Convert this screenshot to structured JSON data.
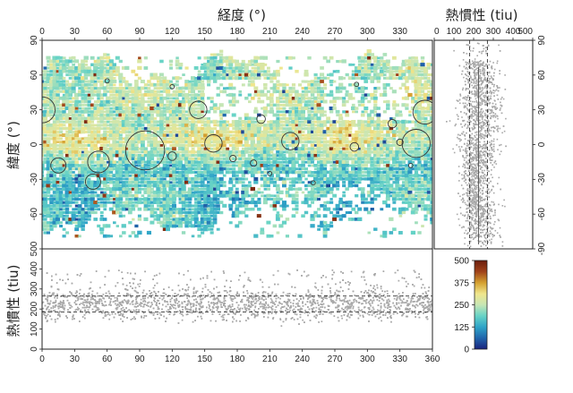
{
  "chart_data": [
    {
      "type": "heatmap",
      "title": "",
      "xlabel": "経度 (°)",
      "ylabel": "緯度 (°)",
      "xlim": [
        0,
        360
      ],
      "ylim": [
        -90,
        90
      ],
      "xticks": [
        0,
        30,
        60,
        90,
        120,
        150,
        180,
        210,
        240,
        270,
        300,
        330
      ],
      "yticks": [
        90,
        60,
        30,
        0,
        -30,
        -60
      ],
      "x_tick_labels": [
        "0",
        "30",
        "60",
        "90",
        "120",
        "150",
        "180",
        "210",
        "240",
        "270",
        "300",
        "330"
      ],
      "y_tick_labels": [
        "90",
        "60",
        "30",
        "0",
        "-30",
        "-60"
      ],
      "variable": "thermal inertia (tiu)",
      "color_range": [
        0,
        500
      ],
      "circles": [
        {
          "lon": 0,
          "lat": 30,
          "r_deg": 12
        },
        {
          "lon": 95,
          "lat": -5,
          "r_deg": 18
        },
        {
          "lon": 52,
          "lat": -15,
          "r_deg": 10
        },
        {
          "lon": 15,
          "lat": -18,
          "r_deg": 7
        },
        {
          "lon": 47,
          "lat": -32,
          "r_deg": 7
        },
        {
          "lon": 144,
          "lat": 30,
          "r_deg": 8
        },
        {
          "lon": 158,
          "lat": 1,
          "r_deg": 8
        },
        {
          "lon": 229,
          "lat": 3,
          "r_deg": 8
        },
        {
          "lon": 345,
          "lat": 1,
          "r_deg": 13
        },
        {
          "lon": 353,
          "lat": 28,
          "r_deg": 11
        },
        {
          "lon": 202,
          "lat": 22,
          "r_deg": 4
        },
        {
          "lon": 120,
          "lat": -10,
          "r_deg": 4
        },
        {
          "lon": 288,
          "lat": -2,
          "r_deg": 4
        },
        {
          "lon": 323,
          "lat": 18,
          "r_deg": 4
        },
        {
          "lon": 330,
          "lat": 2,
          "r_deg": 3
        },
        {
          "lon": 176,
          "lat": -12,
          "r_deg": 3
        },
        {
          "lon": 195,
          "lat": -16,
          "r_deg": 3
        },
        {
          "lon": 120,
          "lat": 50,
          "r_deg": 2
        },
        {
          "lon": 250,
          "lat": -33,
          "r_deg": 2
        },
        {
          "lon": 210,
          "lat": -25,
          "r_deg": 2
        },
        {
          "lon": 340,
          "lat": -18,
          "r_deg": 2
        },
        {
          "lon": 60,
          "lat": 55,
          "r_deg": 2
        },
        {
          "lon": 290,
          "lat": 52,
          "r_deg": 2
        }
      ]
    },
    {
      "type": "scatter",
      "title": "",
      "xlabel": "熱慣性 (tiu)",
      "ylabel": "",
      "xlim": [
        0,
        500
      ],
      "ylim": [
        -90,
        90
      ],
      "xticks": [
        0,
        100,
        200,
        300,
        400,
        500
      ],
      "yticks": [
        90,
        60,
        30,
        0,
        -30,
        -60,
        -90
      ],
      "x_tick_labels": [
        "0",
        "100",
        "200",
        "300",
        "400",
        "500"
      ],
      "y_tick_labels": [
        "90",
        "60",
        "30",
        "0",
        "-30",
        "-60",
        "-90"
      ],
      "reference_lines_x": [
        180,
        270
      ],
      "center_line_x": 225
    },
    {
      "type": "scatter",
      "title": "",
      "xlabel": "",
      "ylabel": "熱慣性 (tiu)",
      "xlim": [
        0,
        360
      ],
      "ylim": [
        0,
        500
      ],
      "xticks": [
        0,
        30,
        60,
        90,
        120,
        150,
        180,
        210,
        240,
        270,
        300,
        330,
        360
      ],
      "yticks": [
        0,
        100,
        200,
        300,
        400,
        500
      ],
      "x_tick_labels": [
        "0",
        "30",
        "60",
        "90",
        "120",
        "150",
        "180",
        "210",
        "240",
        "270",
        "300",
        "330",
        "360"
      ],
      "y_tick_labels": [
        "0",
        "100",
        "200",
        "300",
        "400",
        "500"
      ],
      "reference_lines_y": [
        185,
        265
      ],
      "center_line_y": 225
    },
    {
      "type": "colorbar",
      "range": [
        0,
        500
      ],
      "ticks": [
        0,
        125,
        250,
        375,
        500
      ],
      "tick_labels": [
        "0",
        "125",
        "250",
        "375",
        "500"
      ],
      "colors": [
        "#1a237e",
        "#2166ac",
        "#2fa4c8",
        "#67d3c6",
        "#c7e6b5",
        "#f0e68c",
        "#d4a030",
        "#a0421a",
        "#6b1e0e"
      ]
    }
  ]
}
